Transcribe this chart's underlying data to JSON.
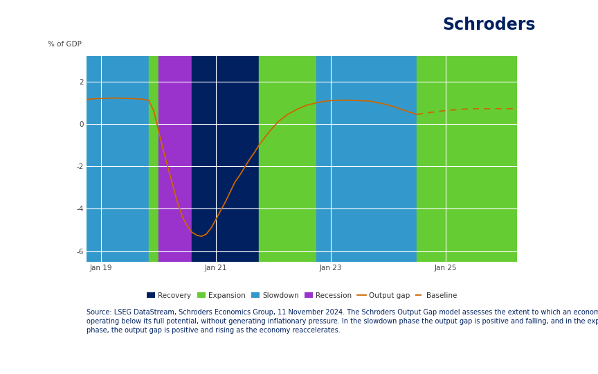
{
  "title": "Schroders",
  "ylabel": "% of GDP",
  "background_color": "#ffffff",
  "schroders_color": "#002060",
  "yticks": [
    -6,
    -4,
    -2,
    0,
    2
  ],
  "xtick_labels": [
    "Jan 19",
    "Jan 21",
    "Jan 23",
    "Jan 25"
  ],
  "xtick_positions": [
    2019.0,
    2021.0,
    2023.0,
    2025.0
  ],
  "xlim": [
    2018.75,
    2026.25
  ],
  "ylim": [
    -6.5,
    3.2
  ],
  "phases": [
    {
      "name": "Slowdown",
      "color": "#3399cc",
      "xmin": 2018.75,
      "xmax": 2019.83
    },
    {
      "name": "Expansion",
      "color": "#66cc33",
      "xmin": 2019.83,
      "xmax": 2020.0
    },
    {
      "name": "Recession",
      "color": "#9933cc",
      "xmin": 2020.0,
      "xmax": 2020.58
    },
    {
      "name": "Recovery",
      "color": "#002060",
      "xmin": 2020.58,
      "xmax": 2021.75
    },
    {
      "name": "Expansion",
      "color": "#66cc33",
      "xmin": 2021.75,
      "xmax": 2022.75
    },
    {
      "name": "Slowdown",
      "color": "#3399cc",
      "xmin": 2022.75,
      "xmax": 2024.5
    },
    {
      "name": "Expansion",
      "color": "#66cc33",
      "xmin": 2024.5,
      "xmax": 2026.25
    }
  ],
  "output_gap_x": [
    2018.75,
    2018.83,
    2019.0,
    2019.17,
    2019.33,
    2019.5,
    2019.67,
    2019.75,
    2019.83,
    2019.92,
    2020.0,
    2020.08,
    2020.17,
    2020.25,
    2020.33,
    2020.42,
    2020.5,
    2020.58,
    2020.67,
    2020.75,
    2020.83,
    2020.92,
    2021.0,
    2021.08,
    2021.17,
    2021.25,
    2021.33,
    2021.42,
    2021.5,
    2021.58,
    2021.67,
    2021.75,
    2021.92,
    2022.08,
    2022.25,
    2022.42,
    2022.58,
    2022.75,
    2022.92,
    2023.0,
    2023.17,
    2023.33,
    2023.5,
    2023.67,
    2023.83,
    2024.0,
    2024.17,
    2024.33,
    2024.5
  ],
  "output_gap_y": [
    1.15,
    1.18,
    1.2,
    1.22,
    1.22,
    1.2,
    1.18,
    1.15,
    1.12,
    0.6,
    -0.3,
    -1.2,
    -2.1,
    -2.9,
    -3.7,
    -4.4,
    -4.8,
    -5.1,
    -5.25,
    -5.3,
    -5.2,
    -4.9,
    -4.5,
    -4.1,
    -3.65,
    -3.2,
    -2.75,
    -2.4,
    -2.05,
    -1.7,
    -1.35,
    -1.0,
    -0.4,
    0.1,
    0.45,
    0.7,
    0.88,
    1.0,
    1.08,
    1.1,
    1.12,
    1.12,
    1.1,
    1.08,
    1.0,
    0.9,
    0.75,
    0.6,
    0.45
  ],
  "baseline_x": [
    2024.5,
    2024.67,
    2024.83,
    2025.0,
    2025.17,
    2025.33,
    2025.5,
    2025.67,
    2025.83,
    2026.0,
    2026.17,
    2026.25
  ],
  "baseline_y": [
    0.45,
    0.52,
    0.58,
    0.63,
    0.67,
    0.7,
    0.72,
    0.72,
    0.72,
    0.72,
    0.72,
    0.72
  ],
  "line_color": "#cc6600",
  "legend_colors": {
    "Recovery": "#002060",
    "Expansion": "#66cc33",
    "Slowdown": "#3399cc",
    "Recession": "#9933cc"
  },
  "source_text": "Source: LSEG DataStream, Schroders Economics Group, 11 November 2024. The Schroders Output Gap model assesses the extent to which an economy is\noperating below its full potential, without generating inflationary pressure. In the slowdown phase the output gap is positive and falling, and in the expansion\nphase, the output gap is positive and rising as the economy reaccelerates.",
  "source_fontsize": 7.0,
  "source_color": "#002060"
}
